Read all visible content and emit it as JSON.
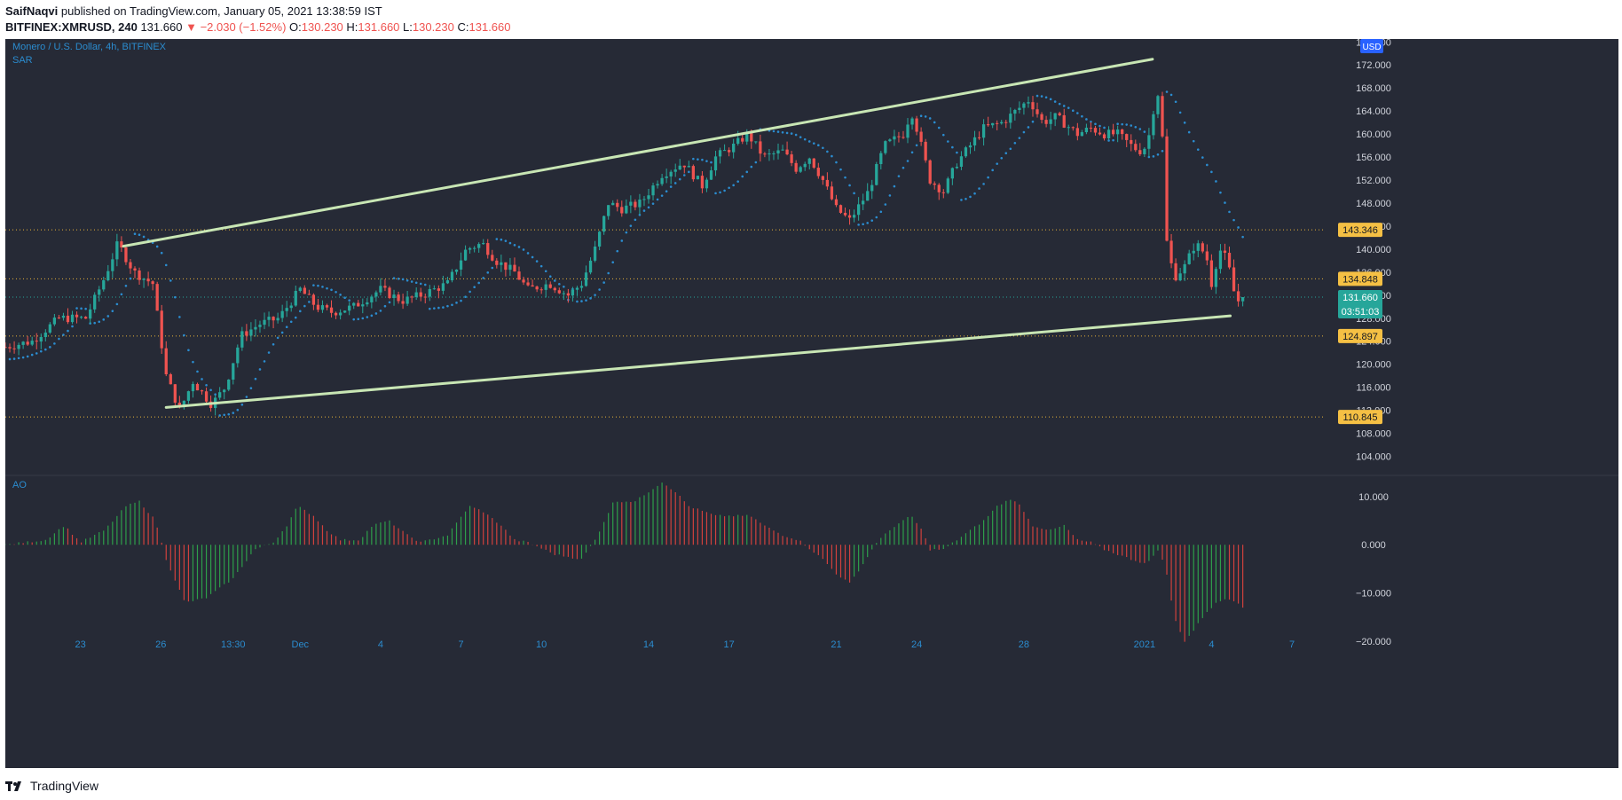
{
  "header": {
    "publisher": "SaifNaqvi",
    "published_text": "published on TradingView.com, January 05, 2021 13:38:59 IST",
    "symbol": "BITFINEX:XMRUSD, 240",
    "last": "131.660",
    "change": "−2.030 (−1.52%)",
    "o_label": "O:",
    "o": "130.230",
    "h_label": "H:",
    "h": "131.660",
    "l_label": "L:",
    "l": "130.230",
    "c_label": "C:",
    "c": "131.660"
  },
  "footer": {
    "brand": "TradingView"
  },
  "colors": {
    "background": "#262a36",
    "up": "#26a69a",
    "down": "#ef5350",
    "trendline": "#c8e6b4",
    "level_line": "#e8b33a",
    "level_label_bg": "#f5c044",
    "price_label_bg": "#26a69a",
    "sar": "#2b8ccf",
    "axis_text": "#d1d4dc",
    "legend_text": "#2b8ccf"
  },
  "chart_data": [
    {
      "type": "candlestick",
      "legend": [
        "Monero / U.S. Dollar, 4h, BITFINEX",
        "SAR"
      ],
      "currency_button": "USD",
      "y_ticks": [
        104,
        108,
        112,
        116,
        120,
        124,
        128,
        132,
        136,
        140,
        144,
        148,
        152,
        156,
        160,
        164,
        168,
        172,
        176
      ],
      "y_tick_labels": [
        "104.000",
        "108.000",
        "112.000",
        "116.000",
        "120.000",
        "124.000",
        "128.000",
        "132.000",
        "136.000",
        "140.000",
        "144.000",
        "148.000",
        "152.000",
        "156.000",
        "160.000",
        "164.000",
        "168.000",
        "172.000",
        "176.000"
      ],
      "ylim": [
        101,
        176.5
      ],
      "x_range_index": [
        0,
        48
      ],
      "x_ticks": [
        {
          "i": 2.8,
          "label": "23"
        },
        {
          "i": 5.8,
          "label": "26"
        },
        {
          "i": 8.5,
          "label": "13:30"
        },
        {
          "i": 11.0,
          "label": "Dec"
        },
        {
          "i": 14.0,
          "label": "4"
        },
        {
          "i": 17.0,
          "label": "7"
        },
        {
          "i": 20.0,
          "label": "10"
        },
        {
          "i": 24.0,
          "label": "14"
        },
        {
          "i": 27.0,
          "label": "17"
        },
        {
          "i": 31.0,
          "label": "21"
        },
        {
          "i": 34.0,
          "label": "24"
        },
        {
          "i": 38.0,
          "label": "28"
        },
        {
          "i": 42.5,
          "label": "2021"
        },
        {
          "i": 45.0,
          "label": "4"
        },
        {
          "i": 48.0,
          "label": "7"
        }
      ],
      "daily_close": [
        [
          0,
          123
        ],
        [
          1,
          124
        ],
        [
          2,
          128
        ],
        [
          3,
          128
        ],
        [
          3.7,
          135
        ],
        [
          4.2,
          141
        ],
        [
          4.8,
          136
        ],
        [
          5.5,
          134
        ],
        [
          6.0,
          118
        ],
        [
          6.5,
          112
        ],
        [
          7.0,
          117
        ],
        [
          7.7,
          113
        ],
        [
          8.2,
          116
        ],
        [
          8.8,
          125
        ],
        [
          9.5,
          127
        ],
        [
          10.2,
          128
        ],
        [
          11.0,
          133
        ],
        [
          11.6,
          130
        ],
        [
          12.2,
          129
        ],
        [
          13.0,
          130
        ],
        [
          14.0,
          133
        ],
        [
          14.8,
          131
        ],
        [
          15.5,
          132
        ],
        [
          16.5,
          134
        ],
        [
          17.2,
          140
        ],
        [
          17.8,
          141
        ],
        [
          18.3,
          138
        ],
        [
          19.0,
          136
        ],
        [
          19.5,
          133
        ],
        [
          20.3,
          134
        ],
        [
          21.0,
          132
        ],
        [
          21.5,
          134
        ],
        [
          22.0,
          140
        ],
        [
          22.5,
          148
        ],
        [
          23.0,
          147
        ],
        [
          23.7,
          148
        ],
        [
          24.5,
          153
        ],
        [
          25.3,
          155
        ],
        [
          26.0,
          151
        ],
        [
          26.5,
          156
        ],
        [
          27.2,
          158
        ],
        [
          27.7,
          160
        ],
        [
          28.3,
          156
        ],
        [
          29.0,
          157
        ],
        [
          29.5,
          154
        ],
        [
          30.0,
          156
        ],
        [
          30.5,
          152
        ],
        [
          31.0,
          147
        ],
        [
          31.5,
          145
        ],
        [
          32.2,
          150
        ],
        [
          32.8,
          158
        ],
        [
          33.5,
          160
        ],
        [
          33.8,
          164
        ],
        [
          34.0,
          161
        ],
        [
          34.5,
          152
        ],
        [
          35.0,
          150
        ],
        [
          35.5,
          155
        ],
        [
          36.0,
          158
        ],
        [
          36.5,
          161
        ],
        [
          37.2,
          162
        ],
        [
          37.7,
          164
        ],
        [
          38.2,
          166
        ],
        [
          38.7,
          162
        ],
        [
          39.2,
          163
        ],
        [
          40.0,
          160
        ],
        [
          40.5,
          161
        ],
        [
          41.0,
          160
        ],
        [
          41.5,
          160
        ],
        [
          42.0,
          158
        ],
        [
          42.3,
          157
        ],
        [
          42.6,
          158
        ],
        [
          42.9,
          166
        ],
        [
          43.1,
          168
        ],
        [
          43.3,
          142
        ],
        [
          43.6,
          135
        ],
        [
          44.0,
          137
        ],
        [
          44.4,
          141
        ],
        [
          44.8,
          139
        ],
        [
          45.0,
          134
        ],
        [
          45.3,
          140
        ],
        [
          45.6,
          138
        ],
        [
          45.8,
          133
        ],
        [
          46.0,
          131
        ],
        [
          46.2,
          131.66
        ]
      ],
      "levels": [
        {
          "value": 143.346,
          "label": "143.346"
        },
        {
          "value": 134.848,
          "label": "134.848"
        },
        {
          "value": 124.897,
          "label": "124.897"
        },
        {
          "value": 110.845,
          "label": "110.845"
        }
      ],
      "current_price": {
        "value": 131.66,
        "label": "131.660",
        "countdown": "03:51:03"
      },
      "trendlines": [
        {
          "from": [
            4.4,
            140.5
          ],
          "to": [
            42.8,
            173.0
          ]
        },
        {
          "from": [
            6.0,
            112.5
          ],
          "to": [
            45.7,
            128.4
          ]
        }
      ]
    },
    {
      "type": "bar",
      "legend": "AO",
      "y_ticks": [
        -20,
        -10,
        0,
        10
      ],
      "y_tick_labels": [
        "−20.000",
        "−10.000",
        "0.000",
        "10.000"
      ],
      "ylim": [
        -22,
        14
      ],
      "ao_keyframes": [
        [
          0,
          0
        ],
        [
          1.5,
          1
        ],
        [
          2.2,
          4
        ],
        [
          2.8,
          0.5
        ],
        [
          3.7,
          3
        ],
        [
          4.5,
          8
        ],
        [
          5.0,
          9
        ],
        [
          5.6,
          5
        ],
        [
          6.0,
          -3
        ],
        [
          6.7,
          -12
        ],
        [
          7.5,
          -11
        ],
        [
          8.5,
          -7
        ],
        [
          9.3,
          -1
        ],
        [
          10.0,
          0.5
        ],
        [
          10.5,
          4
        ],
        [
          10.9,
          8
        ],
        [
          11.5,
          6
        ],
        [
          12.0,
          3
        ],
        [
          12.5,
          1
        ],
        [
          13.2,
          1
        ],
        [
          13.7,
          4
        ],
        [
          14.3,
          5
        ],
        [
          15.0,
          2
        ],
        [
          15.5,
          0.5
        ],
        [
          16.5,
          2
        ],
        [
          17.3,
          8
        ],
        [
          17.8,
          7
        ],
        [
          18.5,
          4
        ],
        [
          19.0,
          1
        ],
        [
          19.5,
          0.5
        ],
        [
          20.5,
          -2
        ],
        [
          21.5,
          -3
        ],
        [
          22.0,
          1
        ],
        [
          22.7,
          9
        ],
        [
          23.5,
          9
        ],
        [
          24.0,
          11
        ],
        [
          24.5,
          13
        ],
        [
          25.0,
          11
        ],
        [
          25.5,
          8
        ],
        [
          26.5,
          6
        ],
        [
          27.3,
          6
        ],
        [
          27.8,
          6
        ],
        [
          28.3,
          4
        ],
        [
          29.0,
          2
        ],
        [
          29.6,
          1
        ],
        [
          30.5,
          -3
        ],
        [
          31.0,
          -6
        ],
        [
          31.5,
          -8
        ],
        [
          32.0,
          -4
        ],
        [
          32.5,
          0.5
        ],
        [
          33.2,
          4
        ],
        [
          33.8,
          6
        ],
        [
          34.2,
          3
        ],
        [
          34.5,
          -1
        ],
        [
          35.0,
          -1
        ],
        [
          35.5,
          1
        ],
        [
          36.0,
          3
        ],
        [
          36.5,
          5
        ],
        [
          37.0,
          8
        ],
        [
          37.5,
          9.5
        ],
        [
          37.9,
          8
        ],
        [
          38.3,
          4
        ],
        [
          39.0,
          3
        ],
        [
          39.5,
          4
        ],
        [
          40.0,
          1
        ],
        [
          40.5,
          0.5
        ],
        [
          41.0,
          -1
        ],
        [
          41.5,
          -2
        ],
        [
          42.0,
          -3
        ],
        [
          42.6,
          -4
        ],
        [
          43.0,
          -1
        ],
        [
          43.3,
          -5
        ],
        [
          43.6,
          -15
        ],
        [
          44.0,
          -20
        ],
        [
          44.3,
          -18
        ],
        [
          44.8,
          -14
        ],
        [
          45.2,
          -12
        ],
        [
          45.6,
          -11
        ],
        [
          46.0,
          -12
        ],
        [
          46.2,
          -13
        ]
      ]
    }
  ]
}
